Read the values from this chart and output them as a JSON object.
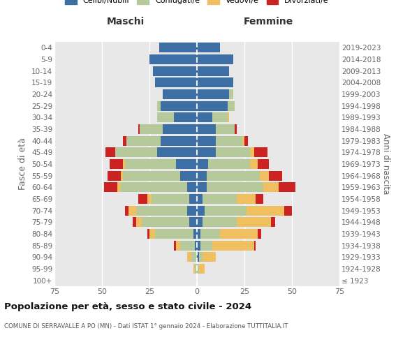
{
  "age_groups": [
    "100+",
    "95-99",
    "90-94",
    "85-89",
    "80-84",
    "75-79",
    "70-74",
    "65-69",
    "60-64",
    "55-59",
    "50-54",
    "45-49",
    "40-44",
    "35-39",
    "30-34",
    "25-29",
    "20-24",
    "15-19",
    "10-14",
    "5-9",
    "0-4"
  ],
  "birth_years": [
    "≤ 1923",
    "1924-1928",
    "1929-1933",
    "1934-1938",
    "1939-1943",
    "1944-1948",
    "1949-1953",
    "1954-1958",
    "1959-1963",
    "1964-1968",
    "1969-1973",
    "1974-1978",
    "1979-1983",
    "1984-1988",
    "1989-1993",
    "1994-1998",
    "1999-2003",
    "2004-2008",
    "2009-2013",
    "2014-2018",
    "2019-2023"
  ],
  "maschi": {
    "celibi": [
      0,
      0,
      0,
      1,
      2,
      4,
      5,
      4,
      5,
      9,
      11,
      21,
      19,
      18,
      12,
      19,
      18,
      22,
      23,
      25,
      20
    ],
    "coniugati": [
      0,
      1,
      3,
      8,
      20,
      25,
      27,
      20,
      35,
      30,
      27,
      22,
      18,
      12,
      9,
      2,
      0,
      0,
      0,
      0,
      0
    ],
    "vedovi": [
      0,
      1,
      2,
      2,
      3,
      3,
      4,
      2,
      2,
      1,
      1,
      0,
      0,
      0,
      0,
      0,
      0,
      0,
      0,
      0,
      0
    ],
    "divorziati": [
      0,
      0,
      0,
      1,
      1,
      2,
      2,
      5,
      7,
      7,
      7,
      5,
      2,
      1,
      0,
      0,
      0,
      0,
      0,
      0,
      0
    ]
  },
  "femmine": {
    "nubili": [
      0,
      0,
      1,
      2,
      2,
      3,
      4,
      3,
      5,
      5,
      6,
      10,
      10,
      10,
      8,
      16,
      17,
      19,
      17,
      19,
      12
    ],
    "coniugate": [
      0,
      1,
      2,
      6,
      10,
      18,
      22,
      18,
      30,
      28,
      22,
      18,
      14,
      10,
      8,
      4,
      2,
      0,
      0,
      0,
      0
    ],
    "vedove": [
      0,
      3,
      7,
      22,
      20,
      18,
      20,
      10,
      8,
      5,
      4,
      2,
      1,
      0,
      1,
      0,
      0,
      0,
      0,
      0,
      0
    ],
    "divorziate": [
      0,
      0,
      0,
      1,
      2,
      2,
      4,
      4,
      9,
      7,
      6,
      7,
      2,
      1,
      0,
      0,
      0,
      0,
      0,
      0,
      0
    ]
  },
  "colors": {
    "celibi": "#3d6fa5",
    "coniugati": "#b5c99a",
    "vedovi": "#f0c060",
    "divorziati": "#cc2222"
  },
  "xlim": 75,
  "title": "Popolazione per età, sesso e stato civile - 2024",
  "subtitle": "COMUNE DI SERRAVALLE A PO (MN) - Dati ISTAT 1° gennaio 2024 - Elaborazione TUTTITALIA.IT",
  "ylabel_left": "Fasce di età",
  "ylabel_right": "Anni di nascita",
  "header_left": "Maschi",
  "header_right": "Femmine"
}
